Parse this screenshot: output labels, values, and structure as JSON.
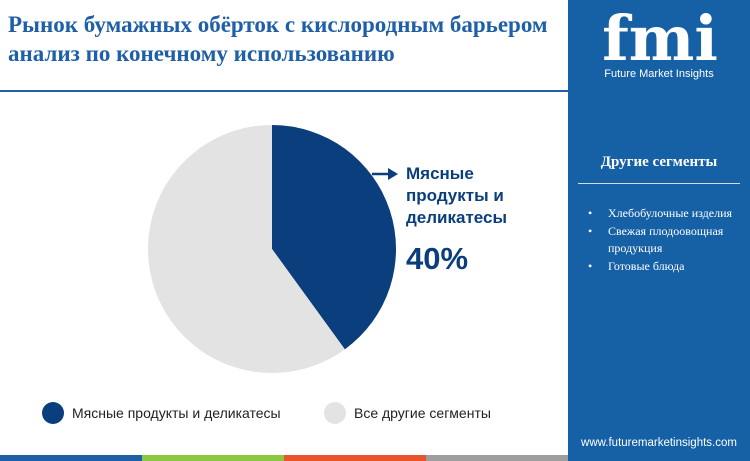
{
  "title": "Рынок бумажных обёрток с кислородным барьером анализ по конечному использованию",
  "chart_data": {
    "type": "pie",
    "title": "Рынок бумажных обёрток с кислородным барьером анализ по конечному использованию",
    "slices": [
      {
        "label": "Мясные продукты и деликатесы",
        "value": 40,
        "color": "#0b3e7c"
      },
      {
        "label": "Все другие сегменты",
        "value": 60,
        "color": "#e3e3e3"
      }
    ],
    "callout": {
      "label": "Мясные продукты и деликатесы",
      "value_label": "40%"
    },
    "legend_position": "bottom"
  },
  "callout": {
    "line1": "Мясные",
    "line2": "продукты и",
    "line3": "деликатесы",
    "value": "40%"
  },
  "legend": [
    {
      "label": "Мясные продукты и деликатесы",
      "color": "#0b3e7c"
    },
    {
      "label": "Все другие сегменты",
      "color": "#e3e3e3"
    }
  ],
  "sidebar": {
    "logo_text": "fmi",
    "tagline": "Future Market Insights",
    "heading": "Другие сегменты",
    "items": [
      "Хлебобулочные изделия",
      "Свежая плодоовощная продукция",
      "Готовые блюда"
    ],
    "website": "www.futuremarketinsights.com"
  },
  "colors": {
    "title": "#1f5fa8",
    "sidebar_bg": "#1660a6",
    "primary_slice": "#0b3e7c",
    "other_slice": "#e3e3e3",
    "bottom_bar": [
      "#1f5fa8",
      "#8dc63f",
      "#e8542c",
      "#9e9e9e"
    ]
  }
}
